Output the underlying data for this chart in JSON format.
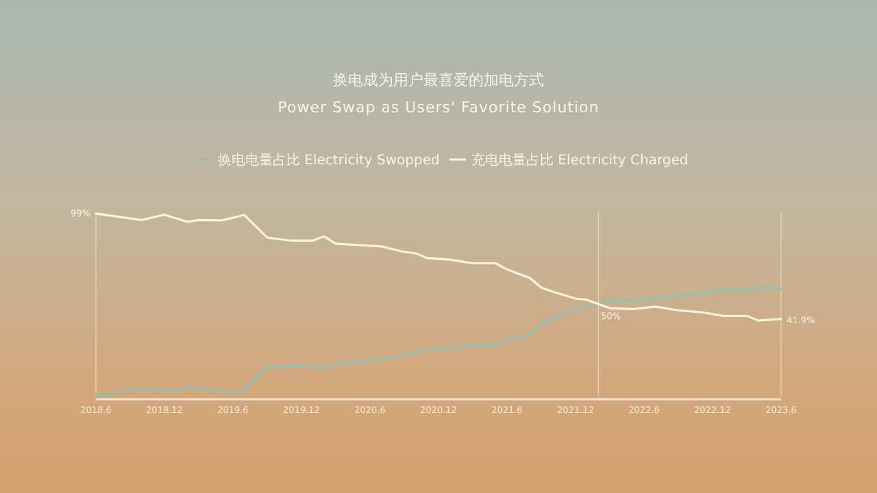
{
  "chart_data": {
    "type": "line",
    "title": "换电成为用户最喜爱的加电方式",
    "subtitle": "Power Swap as Users' Favorite Solution",
    "legend": "top",
    "tick_labels": "x",
    "xlim": [
      "2018-06",
      "2023-06"
    ],
    "ylim": [
      0,
      100
    ],
    "xticks": [
      {
        "value": "2018-06",
        "label": "2018.6"
      },
      {
        "value": "2018-12",
        "label": "2018.12"
      },
      {
        "value": "2019-06",
        "label": "2019.6"
      },
      {
        "value": "2019-12",
        "label": "2019.12"
      },
      {
        "value": "2020-06",
        "label": "2020.6"
      },
      {
        "value": "2020-12",
        "label": "2020.12"
      },
      {
        "value": "2021-06",
        "label": "2021.6"
      },
      {
        "value": "2021-12",
        "label": "2021.12"
      },
      {
        "value": "2022-06",
        "label": "2022.6"
      },
      {
        "value": "2022-12",
        "label": "2022.12"
      },
      {
        "value": "2023-06",
        "label": "2023.6"
      }
    ],
    "ref_lines": [
      {
        "axis": "x",
        "value": "2018-06",
        "color": "#ece1cc"
      },
      {
        "axis": "x",
        "value": "2022-02",
        "color": "#ece1cc"
      },
      {
        "axis": "x",
        "value": "2023-06",
        "color": "#ece1cc"
      }
    ],
    "series": [
      {
        "name": "换电电量占比 Electricity Swopped",
        "color": "#8fc1b8",
        "x": [
          "2018-06",
          "2018-07",
          "2018-08",
          "2018-10",
          "2019-01",
          "2019-02",
          "2019-06",
          "2019-07",
          "2019-09",
          "2019-12",
          "2020-02",
          "2020-03",
          "2020-06",
          "2020-09",
          "2020-11",
          "2021-01",
          "2021-03",
          "2021-05",
          "2021-06",
          "2021-08",
          "2021-09",
          "2021-11",
          "2021-12",
          "2022-02",
          "2022-03",
          "2022-05",
          "2022-07",
          "2022-09",
          "2022-11",
          "2023-01",
          "2023-03",
          "2023-05",
          "2023-06"
        ],
        "values": [
          1,
          0,
          3,
          4.1,
          2.8,
          5,
          2.1,
          3.5,
          15.7,
          16.9,
          15.2,
          17.6,
          19.4,
          22.4,
          25.2,
          25.6,
          27.6,
          28,
          30.5,
          33.5,
          39.1,
          44.6,
          47.8,
          50,
          51.5,
          52,
          52.8,
          54.5,
          56,
          57.7,
          57.7,
          59.5,
          58.1
        ]
      },
      {
        "name": "充电电量占比 Electricity Charged",
        "color": "#fbf3dc",
        "x": [
          "2018-06",
          "2018-10",
          "2018-12",
          "2019-02",
          "2019-03",
          "2019-05",
          "2019-07",
          "2019-09",
          "2019-11",
          "2020-01",
          "2020-02",
          "2020-03",
          "2020-07",
          "2020-09",
          "2020-10",
          "2020-11",
          "2021-01",
          "2021-03",
          "2021-05",
          "2021-06",
          "2021-08",
          "2021-09",
          "2021-10",
          "2021-12",
          "2022-01",
          "2022-02",
          "2022-03",
          "2022-05",
          "2022-07",
          "2022-09",
          "2022-11",
          "2023-01",
          "2023-03",
          "2023-04",
          "2023-06"
        ],
        "values": [
          99,
          95.5,
          98.4,
          94.5,
          95.5,
          95.3,
          98.2,
          86,
          84.4,
          84.4,
          86.6,
          82.7,
          81.2,
          78.2,
          77.5,
          74.9,
          74.1,
          72.1,
          72.1,
          68.8,
          64.1,
          58.9,
          56.7,
          53,
          52.3,
          50,
          47.8,
          47.3,
          48.6,
          46.6,
          45.6,
          43.6,
          43.6,
          41.1,
          41.9
        ],
        "value_labels": [
          "99%",
          null,
          null,
          null,
          null,
          null,
          null,
          null,
          null,
          null,
          null,
          null,
          null,
          null,
          null,
          null,
          null,
          null,
          null,
          null,
          null,
          null,
          null,
          null,
          null,
          "50%",
          null,
          null,
          null,
          null,
          null,
          null,
          null,
          null,
          "41.9%"
        ]
      }
    ]
  }
}
